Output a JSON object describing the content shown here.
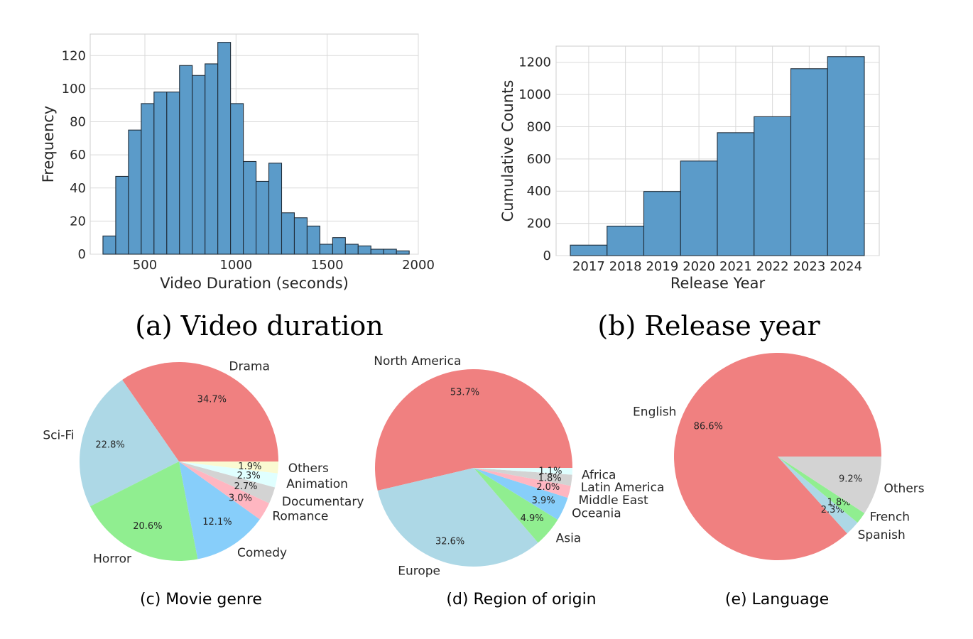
{
  "captions": {
    "a": "(a) Video duration",
    "b": "(b) Release year",
    "c": "(c) Movie genre",
    "d": "(d) Region of origin",
    "e": "(e) Language"
  },
  "chart_data": [
    {
      "id": "a",
      "type": "bar",
      "subtype": "histogram",
      "xlabel": "Video Duration (seconds)",
      "ylabel": "Frequency",
      "xlim": [
        200,
        2000
      ],
      "ylim": [
        0,
        133
      ],
      "xticks": [
        500,
        1000,
        1500,
        2000
      ],
      "yticks": [
        0,
        20,
        40,
        60,
        80,
        100,
        120
      ],
      "grid": true,
      "bar_color": "#5b9bc9",
      "bins": [
        {
          "x0": 270,
          "x1": 340,
          "value": 11
        },
        {
          "x0": 340,
          "x1": 410,
          "value": 47
        },
        {
          "x0": 410,
          "x1": 480,
          "value": 75
        },
        {
          "x0": 480,
          "x1": 550,
          "value": 91
        },
        {
          "x0": 550,
          "x1": 620,
          "value": 98
        },
        {
          "x0": 620,
          "x1": 690,
          "value": 98
        },
        {
          "x0": 690,
          "x1": 760,
          "value": 114
        },
        {
          "x0": 760,
          "x1": 830,
          "value": 108
        },
        {
          "x0": 830,
          "x1": 900,
          "value": 115
        },
        {
          "x0": 900,
          "x1": 970,
          "value": 128
        },
        {
          "x0": 970,
          "x1": 1040,
          "value": 91
        },
        {
          "x0": 1040,
          "x1": 1110,
          "value": 56
        },
        {
          "x0": 1110,
          "x1": 1180,
          "value": 44
        },
        {
          "x0": 1180,
          "x1": 1250,
          "value": 55
        },
        {
          "x0": 1250,
          "x1": 1320,
          "value": 25
        },
        {
          "x0": 1320,
          "x1": 1390,
          "value": 22
        },
        {
          "x0": 1390,
          "x1": 1460,
          "value": 17
        },
        {
          "x0": 1460,
          "x1": 1530,
          "value": 6
        },
        {
          "x0": 1530,
          "x1": 1600,
          "value": 10
        },
        {
          "x0": 1600,
          "x1": 1670,
          "value": 6
        },
        {
          "x0": 1670,
          "x1": 1740,
          "value": 5
        },
        {
          "x0": 1740,
          "x1": 1810,
          "value": 3
        },
        {
          "x0": 1810,
          "x1": 1880,
          "value": 3
        },
        {
          "x0": 1880,
          "x1": 1950,
          "value": 2
        }
      ]
    },
    {
      "id": "b",
      "type": "bar",
      "subtype": "cumulative histogram",
      "xlabel": "Release Year",
      "ylabel": "Cumulative Counts",
      "categories": [
        "2017",
        "2018",
        "2019",
        "2020",
        "2021",
        "2022",
        "2023",
        "2024"
      ],
      "values": [
        65,
        183,
        398,
        587,
        763,
        862,
        1160,
        1235
      ],
      "ylim": [
        0,
        1300
      ],
      "yticks": [
        0,
        200,
        400,
        600,
        800,
        1000,
        1200
      ],
      "grid": true,
      "bar_color": "#5b9bc9"
    },
    {
      "id": "c",
      "type": "pie",
      "slices": [
        {
          "label": "Drama",
          "pct": "34.7%",
          "value": 34.7,
          "color": "#f08080"
        },
        {
          "label": "Sci-Fi",
          "pct": "22.8%",
          "value": 22.8,
          "color": "#add8e6"
        },
        {
          "label": "Horror",
          "pct": "20.6%",
          "value": 20.6,
          "color": "#90ee90"
        },
        {
          "label": "Comedy",
          "pct": "12.1%",
          "value": 12.1,
          "color": "#87cefa"
        },
        {
          "label": "Romance",
          "pct": "3.0%",
          "value": 3.0,
          "color": "#ffb6c1"
        },
        {
          "label": "Documentary",
          "pct": "2.7%",
          "value": 2.7,
          "color": "#d3d3d3"
        },
        {
          "label": "Animation",
          "pct": "2.3%",
          "value": 2.3,
          "color": "#e0ffff"
        },
        {
          "label": "Others",
          "pct": "1.9%",
          "value": 1.9,
          "color": "#fafad2"
        }
      ]
    },
    {
      "id": "d",
      "type": "pie",
      "slices": [
        {
          "label": "North America",
          "pct": "53.7%",
          "value": 53.7,
          "color": "#f08080"
        },
        {
          "label": "Europe",
          "pct": "32.6%",
          "value": 32.6,
          "color": "#add8e6"
        },
        {
          "label": "Asia",
          "pct": "4.9%",
          "value": 4.9,
          "color": "#90ee90"
        },
        {
          "label": "Oceania",
          "pct": "3.9%",
          "value": 3.9,
          "color": "#87cefa"
        },
        {
          "label": "Middle East",
          "pct": "2.0%",
          "value": 2.0,
          "color": "#ffb6c1"
        },
        {
          "label": "Latin America",
          "pct": "1.8%",
          "value": 1.8,
          "color": "#d3d3d3"
        },
        {
          "label": "Africa",
          "pct": "1.1%",
          "value": 1.1,
          "color": "#e0ffff"
        }
      ]
    },
    {
      "id": "e",
      "type": "pie",
      "slices": [
        {
          "label": "English",
          "pct": "86.6%",
          "value": 86.6,
          "color": "#f08080"
        },
        {
          "label": "Spanish",
          "pct": "2.3%",
          "value": 2.3,
          "color": "#add8e6"
        },
        {
          "label": "French",
          "pct": "1.8%",
          "value": 1.8,
          "color": "#90ee90"
        },
        {
          "label": "Others",
          "pct": "9.2%",
          "value": 9.2,
          "color": "#d3d3d3"
        }
      ]
    }
  ]
}
